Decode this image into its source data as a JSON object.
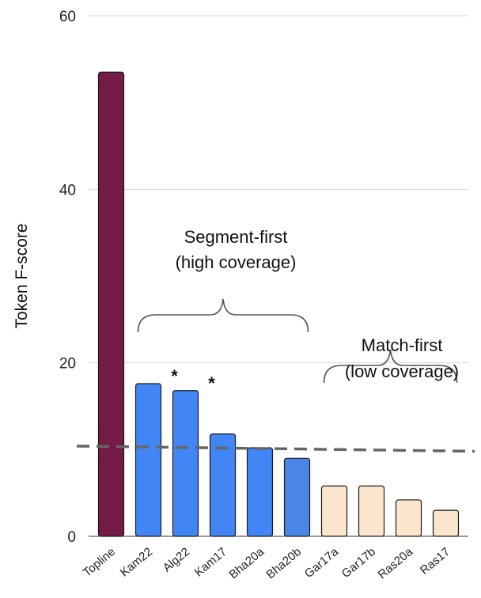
{
  "chart_data": {
    "type": "bar",
    "ylabel": "Token F-score",
    "xlabel": "",
    "ylim": [
      0,
      60
    ],
    "yticks": [
      0,
      20,
      40,
      60
    ],
    "grid": true,
    "categories": [
      "Topline",
      "Kam22",
      "Alg22",
      "Kam17",
      "Bha20a",
      "Bha20b",
      "Gar17a",
      "Gar17b",
      "Ras20a",
      "Ras17"
    ],
    "values": [
      53.5,
      17.6,
      16.8,
      11.8,
      10.2,
      9.0,
      5.8,
      5.8,
      4.2,
      3.0
    ],
    "bar_colors": [
      "#741b47",
      "#4285f4",
      "#4285f4",
      "#4285f4",
      "#4285f4",
      "#4a86e8",
      "#fce5cd",
      "#fce5cd",
      "#fce5cd",
      "#fce5cd"
    ],
    "significance_marks": [
      {
        "category": "Kam22",
        "label": "*"
      },
      {
        "category": "Alg22",
        "label": "*"
      }
    ],
    "reference_line": {
      "style": "dashed",
      "color": "#666666",
      "y_start": 10.4,
      "y_end": 9.8
    },
    "groups": [
      {
        "lines": [
          "Segment-first",
          "(high coverage)"
        ],
        "from": "Kam22",
        "to": "Bha20b"
      },
      {
        "lines": [
          "Match-first",
          "(low coverage)"
        ],
        "from": "Gar17a",
        "to": "Ras17"
      }
    ]
  }
}
